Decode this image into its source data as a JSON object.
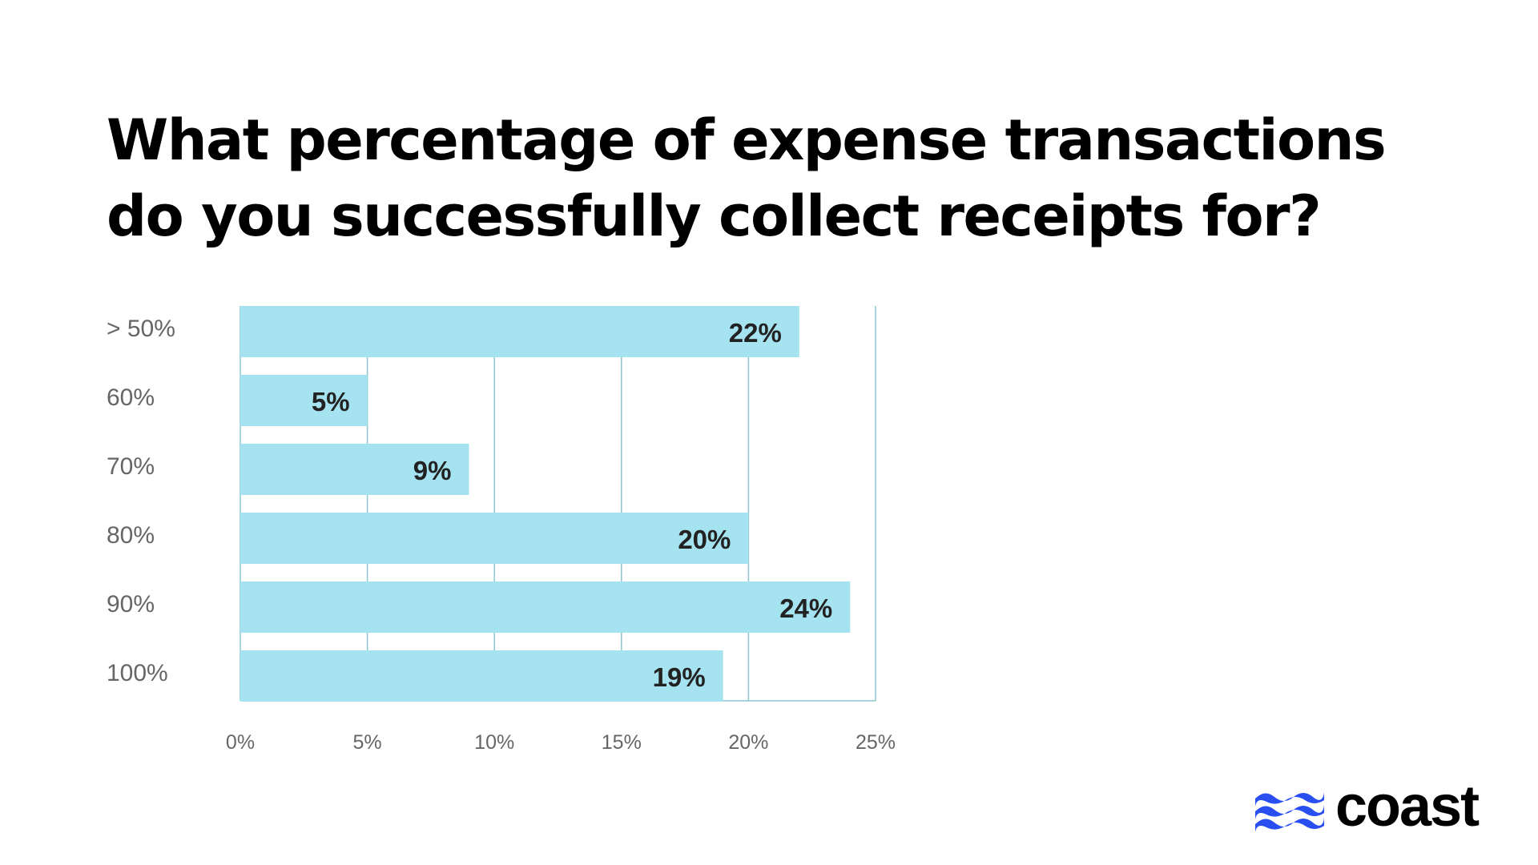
{
  "title_lines": [
    "What percentage of expense transactions",
    "do you successfully collect receipts for?"
  ],
  "chart_data": {
    "type": "bar",
    "orientation": "horizontal",
    "title": "What percentage of expense transactions do you successfully collect receipts for?",
    "categories": [
      "> 50%",
      "60%",
      "70%",
      "80%",
      "90%",
      "100%"
    ],
    "values": [
      22,
      5,
      9,
      20,
      24,
      19
    ],
    "value_labels": [
      "22%",
      "5%",
      "9%",
      "20%",
      "24%",
      "19%"
    ],
    "xlim": [
      0,
      25
    ],
    "xticks": [
      0,
      5,
      10,
      15,
      20,
      25
    ],
    "xtick_labels": [
      "0%",
      "5%",
      "10%",
      "15%",
      "20%",
      "25%"
    ],
    "xlabel": "",
    "ylabel": "",
    "grid": true,
    "bar_color": "#a6e3f0",
    "grid_color": "#8cc6cf",
    "label_color": "#666666",
    "value_color": "#222222"
  },
  "brand": {
    "name": "coast",
    "color": "#2a4ff0"
  }
}
